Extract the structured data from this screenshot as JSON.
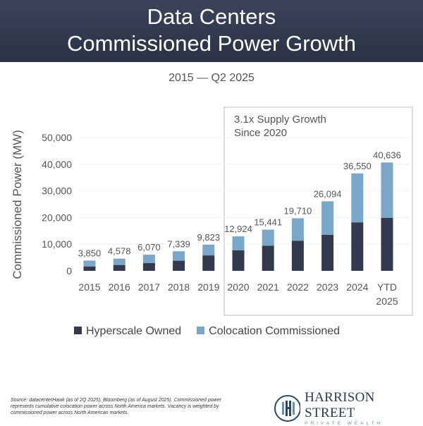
{
  "header": {
    "title_line1": "Data Centers",
    "title_line2": "Commissioned Power Growth"
  },
  "subtitle": "2015 — Q2 2025",
  "chart_data": {
    "type": "bar",
    "stacked": true,
    "categories": [
      "2015",
      "2016",
      "2017",
      "2018",
      "2019",
      "2020",
      "2021",
      "2022",
      "2023",
      "2024",
      "YTD 2025"
    ],
    "totals": [
      3850,
      4578,
      6070,
      7339,
      9823,
      12924,
      15441,
      19710,
      26094,
      36550,
      40636
    ],
    "total_labels": [
      "3,850",
      "4,578",
      "6,070",
      "7,339",
      "9,823",
      "12,924",
      "15,441",
      "19,710",
      "26,094",
      "36,550",
      "40,636"
    ],
    "series": [
      {
        "name": "Hyperscale Owned",
        "color": "#333a4d",
        "values": [
          1600,
          2200,
          2900,
          3800,
          5800,
          7700,
          9400,
          11300,
          13500,
          18200,
          19900
        ]
      },
      {
        "name": "Colocation Commissioned",
        "color": "#7aa7c9",
        "values": [
          2250,
          2378,
          3170,
          3539,
          4023,
          5224,
          6041,
          8410,
          12594,
          18350,
          20736
        ]
      }
    ],
    "ylabel": "Commissioned Power (MW)",
    "ylim": [
      0,
      50000
    ],
    "yticks": [
      "0",
      "10,000",
      "20,000",
      "30,000",
      "40,000",
      "50,000"
    ],
    "grid": true,
    "legend_placement": "bottom",
    "annotation": {
      "line1": "3.1x Supply Growth",
      "line2": "Since 2020"
    }
  },
  "footer": {
    "source": "Source: datacenterHawk (as of 2Q 2025), Bloomberg (as of August 2025). Commissioned power represents cumulative colocation power across North America markets. Vacancy is weighted by commissioned power across North American markets.",
    "logo_name": "HARRISON STREET",
    "logo_sub": "PRIVATE WEALTH"
  }
}
